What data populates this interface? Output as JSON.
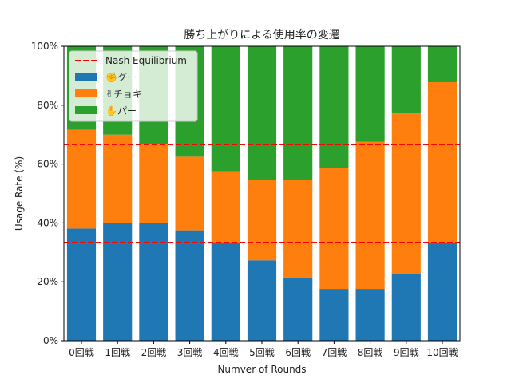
{
  "chart_data": {
    "type": "bar",
    "stacked": true,
    "title": "勝ち上がりによる使用率の変遷",
    "xlabel": "Numver of Rounds",
    "ylabel": "Usage Rate (%)",
    "ylim": [
      0,
      100
    ],
    "yticks": [
      0,
      20,
      40,
      60,
      80,
      100
    ],
    "ytick_labels": [
      "0%",
      "20%",
      "40%",
      "60%",
      "80%",
      "100%"
    ],
    "categories": [
      "0回戦",
      "1回戦",
      "2回戦",
      "3回戦",
      "4回戦",
      "5回戦",
      "6回戦",
      "7回戦",
      "8回戦",
      "9回戦",
      "10回戦"
    ],
    "series": [
      {
        "name": "✊グー",
        "color": "#1f77b4",
        "values": [
          38.1,
          40,
          40,
          37.5,
          33.3,
          27.3,
          21.4,
          17.6,
          17.6,
          22.7,
          33.3
        ]
      },
      {
        "name": "✌チョキ",
        "color": "#ff7f0e",
        "values": [
          33.6,
          30,
          26.7,
          25,
          24.3,
          27.3,
          33.3,
          41.2,
          50,
          54.5,
          54.5
        ]
      },
      {
        "name": "✋パー",
        "color": "#2ca02c",
        "values": [
          28.3,
          30,
          33.3,
          37.5,
          42.4,
          45.4,
          45.3,
          41.2,
          32.4,
          22.8,
          12.2
        ]
      }
    ],
    "reference_lines": {
      "name": "Nash Equilibrium",
      "color": "#ff0000",
      "style": "dashed",
      "values": [
        33.33,
        66.67
      ]
    },
    "legend_position": "top-left",
    "grid": false
  }
}
